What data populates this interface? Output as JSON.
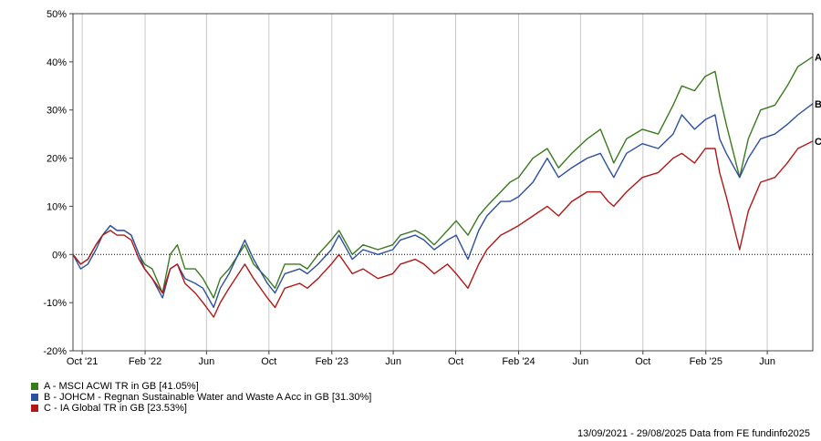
{
  "chart_data": {
    "type": "line",
    "title": "",
    "xlabel": "",
    "ylabel": "",
    "ylim": [
      -20,
      50
    ],
    "y_ticks": [
      -20,
      -10,
      0,
      10,
      20,
      30,
      40,
      50
    ],
    "y_tick_labels": [
      "-20%",
      "-10%",
      "0%",
      "10%",
      "20%",
      "30%",
      "40%",
      "50%"
    ],
    "x_range": [
      "2021-09-13",
      "2025-08-29"
    ],
    "x_ticks": [
      {
        "date": "2021-10-01",
        "label": "Oct '21"
      },
      {
        "date": "2022-02-01",
        "label": "Feb '22"
      },
      {
        "date": "2022-06-01",
        "label": "Jun"
      },
      {
        "date": "2022-10-01",
        "label": "Oct"
      },
      {
        "date": "2023-02-01",
        "label": "Feb '23"
      },
      {
        "date": "2023-06-01",
        "label": "Jun"
      },
      {
        "date": "2023-10-01",
        "label": "Oct"
      },
      {
        "date": "2024-02-01",
        "label": "Feb '24"
      },
      {
        "date": "2024-06-01",
        "label": "Jun"
      },
      {
        "date": "2024-10-01",
        "label": "Oct"
      },
      {
        "date": "2025-02-01",
        "label": "Feb '25"
      },
      {
        "date": "2025-06-01",
        "label": "Jun"
      }
    ],
    "grid": "vertical",
    "zero_line": "dotted",
    "series": [
      {
        "key": "A",
        "name": "A - MSCI ACWI TR in GB [41.05%]",
        "color": "#3a7a1e",
        "points": [
          [
            "2021-09-13",
            0
          ],
          [
            "2021-09-28",
            -2
          ],
          [
            "2021-10-12",
            -1
          ],
          [
            "2021-10-28",
            2
          ],
          [
            "2021-11-10",
            4
          ],
          [
            "2021-11-25",
            6
          ],
          [
            "2021-12-08",
            5
          ],
          [
            "2021-12-22",
            5
          ],
          [
            "2022-01-05",
            4
          ],
          [
            "2022-01-20",
            0
          ],
          [
            "2022-01-31",
            -2
          ],
          [
            "2022-02-15",
            -3
          ],
          [
            "2022-03-07",
            -8
          ],
          [
            "2022-03-22",
            0
          ],
          [
            "2022-04-05",
            2
          ],
          [
            "2022-04-20",
            -3
          ],
          [
            "2022-05-10",
            -3
          ],
          [
            "2022-05-25",
            -5
          ],
          [
            "2022-06-15",
            -9
          ],
          [
            "2022-06-28",
            -5
          ],
          [
            "2022-07-15",
            -3
          ],
          [
            "2022-08-15",
            2
          ],
          [
            "2022-09-01",
            -2
          ],
          [
            "2022-09-28",
            -5
          ],
          [
            "2022-10-13",
            -7
          ],
          [
            "2022-11-01",
            -2
          ],
          [
            "2022-11-30",
            -2
          ],
          [
            "2022-12-15",
            -3
          ],
          [
            "2023-01-05",
            0
          ],
          [
            "2023-01-31",
            3
          ],
          [
            "2023-02-15",
            5
          ],
          [
            "2023-03-13",
            0
          ],
          [
            "2023-04-03",
            2
          ],
          [
            "2023-05-02",
            1
          ],
          [
            "2023-05-31",
            2
          ],
          [
            "2023-06-15",
            4
          ],
          [
            "2023-07-14",
            5
          ],
          [
            "2023-07-31",
            4
          ],
          [
            "2023-08-20",
            2
          ],
          [
            "2023-09-15",
            5
          ],
          [
            "2023-10-02",
            7
          ],
          [
            "2023-10-25",
            4
          ],
          [
            "2023-11-15",
            8
          ],
          [
            "2023-12-01",
            10
          ],
          [
            "2023-12-28",
            13
          ],
          [
            "2024-01-15",
            15
          ],
          [
            "2024-02-01",
            16
          ],
          [
            "2024-02-29",
            20
          ],
          [
            "2024-03-28",
            22
          ],
          [
            "2024-04-19",
            18
          ],
          [
            "2024-05-15",
            21
          ],
          [
            "2024-06-14",
            24
          ],
          [
            "2024-07-10",
            26
          ],
          [
            "2024-07-25",
            22
          ],
          [
            "2024-08-05",
            19
          ],
          [
            "2024-08-30",
            24
          ],
          [
            "2024-09-30",
            26
          ],
          [
            "2024-10-31",
            25
          ],
          [
            "2024-11-29",
            31
          ],
          [
            "2024-12-16",
            35
          ],
          [
            "2025-01-10",
            34
          ],
          [
            "2025-01-31",
            37
          ],
          [
            "2025-02-19",
            38
          ],
          [
            "2025-02-28",
            33
          ],
          [
            "2025-03-13",
            27
          ],
          [
            "2025-04-08",
            16
          ],
          [
            "2025-04-25",
            24
          ],
          [
            "2025-05-19",
            30
          ],
          [
            "2025-06-16",
            31
          ],
          [
            "2025-07-10",
            35
          ],
          [
            "2025-07-31",
            39
          ],
          [
            "2025-08-29",
            41.05
          ]
        ]
      },
      {
        "key": "B",
        "name": "B - JOHCM - Regnan Sustainable Water and Waste A Acc in GB [31.30%]",
        "color": "#2d4fa0",
        "points": [
          [
            "2021-09-13",
            0
          ],
          [
            "2021-09-28",
            -3
          ],
          [
            "2021-10-12",
            -2
          ],
          [
            "2021-10-28",
            1
          ],
          [
            "2021-11-10",
            4
          ],
          [
            "2021-11-25",
            6
          ],
          [
            "2021-12-08",
            5
          ],
          [
            "2021-12-22",
            5
          ],
          [
            "2022-01-05",
            4
          ],
          [
            "2022-01-20",
            0
          ],
          [
            "2022-01-31",
            -3
          ],
          [
            "2022-02-15",
            -5
          ],
          [
            "2022-03-07",
            -9
          ],
          [
            "2022-03-22",
            -3
          ],
          [
            "2022-04-05",
            -2
          ],
          [
            "2022-04-20",
            -5
          ],
          [
            "2022-05-10",
            -6
          ],
          [
            "2022-05-25",
            -7
          ],
          [
            "2022-06-15",
            -11
          ],
          [
            "2022-06-28",
            -7
          ],
          [
            "2022-07-15",
            -4
          ],
          [
            "2022-08-15",
            3
          ],
          [
            "2022-09-01",
            -1
          ],
          [
            "2022-09-28",
            -6
          ],
          [
            "2022-10-13",
            -8
          ],
          [
            "2022-11-01",
            -4
          ],
          [
            "2022-11-30",
            -3
          ],
          [
            "2022-12-15",
            -4
          ],
          [
            "2023-01-05",
            -2
          ],
          [
            "2023-01-31",
            1
          ],
          [
            "2023-02-15",
            4
          ],
          [
            "2023-03-13",
            -1
          ],
          [
            "2023-04-03",
            1
          ],
          [
            "2023-05-02",
            0
          ],
          [
            "2023-05-31",
            1
          ],
          [
            "2023-06-15",
            3
          ],
          [
            "2023-07-14",
            4
          ],
          [
            "2023-07-31",
            3
          ],
          [
            "2023-08-20",
            1
          ],
          [
            "2023-09-15",
            3
          ],
          [
            "2023-10-02",
            4
          ],
          [
            "2023-10-25",
            -1
          ],
          [
            "2023-11-15",
            5
          ],
          [
            "2023-12-01",
            8
          ],
          [
            "2023-12-28",
            11
          ],
          [
            "2024-01-15",
            11
          ],
          [
            "2024-02-01",
            12
          ],
          [
            "2024-02-29",
            15
          ],
          [
            "2024-03-28",
            20
          ],
          [
            "2024-04-19",
            16
          ],
          [
            "2024-05-15",
            18
          ],
          [
            "2024-06-14",
            20
          ],
          [
            "2024-07-10",
            21
          ],
          [
            "2024-07-25",
            18
          ],
          [
            "2024-08-05",
            16
          ],
          [
            "2024-08-30",
            21
          ],
          [
            "2024-09-30",
            23
          ],
          [
            "2024-10-31",
            22
          ],
          [
            "2024-11-29",
            25
          ],
          [
            "2024-12-16",
            29
          ],
          [
            "2025-01-10",
            26
          ],
          [
            "2025-01-31",
            28
          ],
          [
            "2025-02-19",
            29
          ],
          [
            "2025-02-28",
            24
          ],
          [
            "2025-03-13",
            21
          ],
          [
            "2025-04-08",
            16
          ],
          [
            "2025-04-25",
            20
          ],
          [
            "2025-05-19",
            24
          ],
          [
            "2025-06-16",
            25
          ],
          [
            "2025-07-10",
            27
          ],
          [
            "2025-07-31",
            29
          ],
          [
            "2025-08-29",
            31.3
          ]
        ]
      },
      {
        "key": "C",
        "name": "C - IA Global TR in GB [23.53%]",
        "color": "#b01818",
        "points": [
          [
            "2021-09-13",
            0
          ],
          [
            "2021-09-28",
            -2
          ],
          [
            "2021-10-12",
            -1
          ],
          [
            "2021-10-28",
            2
          ],
          [
            "2021-11-10",
            4
          ],
          [
            "2021-11-25",
            5
          ],
          [
            "2021-12-08",
            4
          ],
          [
            "2021-12-22",
            4
          ],
          [
            "2022-01-05",
            3
          ],
          [
            "2022-01-20",
            -1
          ],
          [
            "2022-01-31",
            -3
          ],
          [
            "2022-02-15",
            -5
          ],
          [
            "2022-03-07",
            -8
          ],
          [
            "2022-03-22",
            -3
          ],
          [
            "2022-04-05",
            -2
          ],
          [
            "2022-04-20",
            -6
          ],
          [
            "2022-05-10",
            -8
          ],
          [
            "2022-05-25",
            -10
          ],
          [
            "2022-06-15",
            -13
          ],
          [
            "2022-06-28",
            -10
          ],
          [
            "2022-07-15",
            -7
          ],
          [
            "2022-08-15",
            -2
          ],
          [
            "2022-09-01",
            -5
          ],
          [
            "2022-09-28",
            -9
          ],
          [
            "2022-10-13",
            -11
          ],
          [
            "2022-11-01",
            -7
          ],
          [
            "2022-11-30",
            -6
          ],
          [
            "2022-12-15",
            -7
          ],
          [
            "2023-01-05",
            -5
          ],
          [
            "2023-01-31",
            -2
          ],
          [
            "2023-02-15",
            0
          ],
          [
            "2023-03-13",
            -4
          ],
          [
            "2023-04-03",
            -3
          ],
          [
            "2023-05-02",
            -5
          ],
          [
            "2023-05-31",
            -4
          ],
          [
            "2023-06-15",
            -2
          ],
          [
            "2023-07-14",
            -1
          ],
          [
            "2023-07-31",
            -2
          ],
          [
            "2023-08-20",
            -4
          ],
          [
            "2023-09-15",
            -2
          ],
          [
            "2023-10-02",
            -4
          ],
          [
            "2023-10-25",
            -7
          ],
          [
            "2023-11-15",
            -2
          ],
          [
            "2023-12-01",
            1
          ],
          [
            "2023-12-28",
            4
          ],
          [
            "2024-01-15",
            5
          ],
          [
            "2024-02-01",
            6
          ],
          [
            "2024-02-29",
            8
          ],
          [
            "2024-03-28",
            10
          ],
          [
            "2024-04-19",
            8
          ],
          [
            "2024-05-15",
            11
          ],
          [
            "2024-06-14",
            13
          ],
          [
            "2024-07-10",
            13
          ],
          [
            "2024-07-25",
            11
          ],
          [
            "2024-08-05",
            10
          ],
          [
            "2024-08-30",
            13
          ],
          [
            "2024-09-30",
            16
          ],
          [
            "2024-10-31",
            17
          ],
          [
            "2024-11-29",
            20
          ],
          [
            "2024-12-16",
            21
          ],
          [
            "2025-01-10",
            19
          ],
          [
            "2025-01-31",
            22
          ],
          [
            "2025-02-19",
            22
          ],
          [
            "2025-02-28",
            17
          ],
          [
            "2025-03-13",
            12
          ],
          [
            "2025-04-08",
            1
          ],
          [
            "2025-04-25",
            9
          ],
          [
            "2025-05-19",
            15
          ],
          [
            "2025-06-16",
            16
          ],
          [
            "2025-07-10",
            19
          ],
          [
            "2025-07-31",
            22
          ],
          [
            "2025-08-29",
            23.53
          ]
        ]
      }
    ]
  },
  "footer": "13/09/2021 - 29/08/2025 Data from FE fundinfo2025"
}
